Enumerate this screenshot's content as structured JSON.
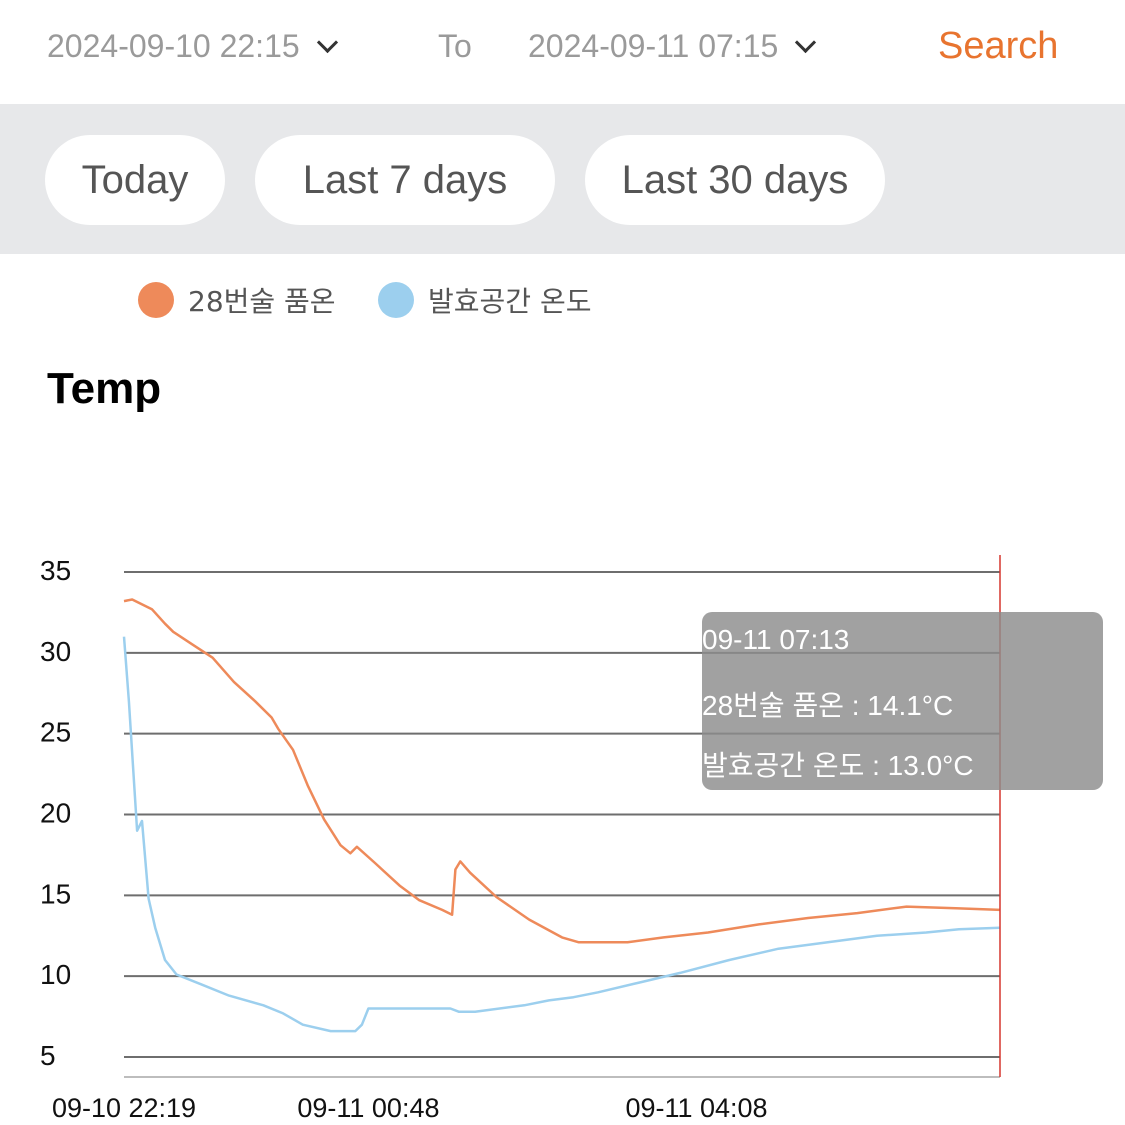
{
  "filter": {
    "start": "2024-09-10 22:15",
    "to_label": "To",
    "end": "2024-09-11 07:15",
    "search_label": "Search"
  },
  "quick_ranges": [
    "Today",
    "Last 7 days",
    "Last 30 days"
  ],
  "colors": {
    "accent": "#e8742f",
    "series1": "#ee8a5a",
    "series2": "#9ccfee",
    "cursor": "#d6372f"
  },
  "chart_data": {
    "type": "line",
    "title": "Temp",
    "ylim": [
      5,
      35
    ],
    "yticks": [
      35,
      30,
      25,
      20,
      15,
      10,
      5
    ],
    "xlim": [
      "2024-09-10 22:19",
      "2024-09-11 07:13"
    ],
    "xticks": [
      "09-10 22:19",
      "09-11 00:48",
      "09-11 04:08"
    ],
    "grid": true,
    "legend": "top-left",
    "series": [
      {
        "name": "28번술 품온",
        "color": "#ee8a5a",
        "points": [
          [
            "2024-09-10 22:19",
            33.2
          ],
          [
            "2024-09-10 22:24",
            33.3
          ],
          [
            "2024-09-10 22:36",
            32.7
          ],
          [
            "2024-09-10 22:44",
            31.8
          ],
          [
            "2024-09-10 22:49",
            31.3
          ],
          [
            "2024-09-10 23:01",
            30.5
          ],
          [
            "2024-09-10 23:13",
            29.7
          ],
          [
            "2024-09-10 23:26",
            28.2
          ],
          [
            "2024-09-10 23:39",
            27.0
          ],
          [
            "2024-09-10 23:49",
            26.0
          ],
          [
            "2024-09-10 23:53",
            25.3
          ],
          [
            "2024-09-11 00:02",
            24.0
          ],
          [
            "2024-09-11 00:11",
            21.8
          ],
          [
            "2024-09-11 00:21",
            19.7
          ],
          [
            "2024-09-11 00:31",
            18.1
          ],
          [
            "2024-09-11 00:37",
            17.6
          ],
          [
            "2024-09-11 00:41",
            18.0
          ],
          [
            "2024-09-11 00:52",
            17.0
          ],
          [
            "2024-09-11 01:07",
            15.6
          ],
          [
            "2024-09-11 01:19",
            14.7
          ],
          [
            "2024-09-11 01:33",
            14.1
          ],
          [
            "2024-09-11 01:39",
            13.8
          ],
          [
            "2024-09-11 01:41",
            16.6
          ],
          [
            "2024-09-11 01:44",
            17.1
          ],
          [
            "2024-09-11 01:50",
            16.4
          ],
          [
            "2024-09-11 02:06",
            14.9
          ],
          [
            "2024-09-11 02:26",
            13.5
          ],
          [
            "2024-09-11 02:46",
            12.4
          ],
          [
            "2024-09-11 02:56",
            12.1
          ],
          [
            "2024-09-11 03:26",
            12.1
          ],
          [
            "2024-09-11 03:48",
            12.4
          ],
          [
            "2024-09-11 04:15",
            12.7
          ],
          [
            "2024-09-11 04:46",
            13.2
          ],
          [
            "2024-09-11 05:16",
            13.6
          ],
          [
            "2024-09-11 05:46",
            13.9
          ],
          [
            "2024-09-11 06:16",
            14.3
          ],
          [
            "2024-09-11 06:46",
            14.2
          ],
          [
            "2024-09-11 07:13",
            14.1
          ]
        ]
      },
      {
        "name": "발효공간 온도",
        "color": "#9ccfee",
        "points": [
          [
            "2024-09-10 22:19",
            31.0
          ],
          [
            "2024-09-10 22:22",
            27.0
          ],
          [
            "2024-09-10 22:27",
            19.0
          ],
          [
            "2024-09-10 22:30",
            19.6
          ],
          [
            "2024-09-10 22:34",
            14.8
          ],
          [
            "2024-09-10 22:38",
            13.0
          ],
          [
            "2024-09-10 22:44",
            11.0
          ],
          [
            "2024-09-10 22:51",
            10.1
          ],
          [
            "2024-09-10 23:06",
            9.5
          ],
          [
            "2024-09-10 23:23",
            8.8
          ],
          [
            "2024-09-10 23:44",
            8.2
          ],
          [
            "2024-09-10 23:56",
            7.7
          ],
          [
            "2024-09-11 00:08",
            7.0
          ],
          [
            "2024-09-11 00:25",
            6.6
          ],
          [
            "2024-09-11 00:40",
            6.6
          ],
          [
            "2024-09-11 00:44",
            7.0
          ],
          [
            "2024-09-11 00:48",
            8.0
          ],
          [
            "2024-09-11 01:08",
            8.0
          ],
          [
            "2024-09-11 01:38",
            8.0
          ],
          [
            "2024-09-11 01:43",
            7.8
          ],
          [
            "2024-09-11 01:53",
            7.8
          ],
          [
            "2024-09-11 02:23",
            8.2
          ],
          [
            "2024-09-11 02:38",
            8.5
          ],
          [
            "2024-09-11 02:53",
            8.7
          ],
          [
            "2024-09-11 03:08",
            9.0
          ],
          [
            "2024-09-11 03:33",
            9.6
          ],
          [
            "2024-09-11 03:58",
            10.2
          ],
          [
            "2024-09-11 04:28",
            11.0
          ],
          [
            "2024-09-11 04:58",
            11.7
          ],
          [
            "2024-09-11 05:28",
            12.1
          ],
          [
            "2024-09-11 05:58",
            12.5
          ],
          [
            "2024-09-11 06:28",
            12.7
          ],
          [
            "2024-09-11 06:48",
            12.9
          ],
          [
            "2024-09-11 07:13",
            13.0
          ]
        ]
      }
    ],
    "tooltip": {
      "time": "09-11 07:13",
      "lines": [
        "28번술 품온 : 14.1°C",
        "발효공간 온도 : 13.0°C"
      ]
    }
  }
}
